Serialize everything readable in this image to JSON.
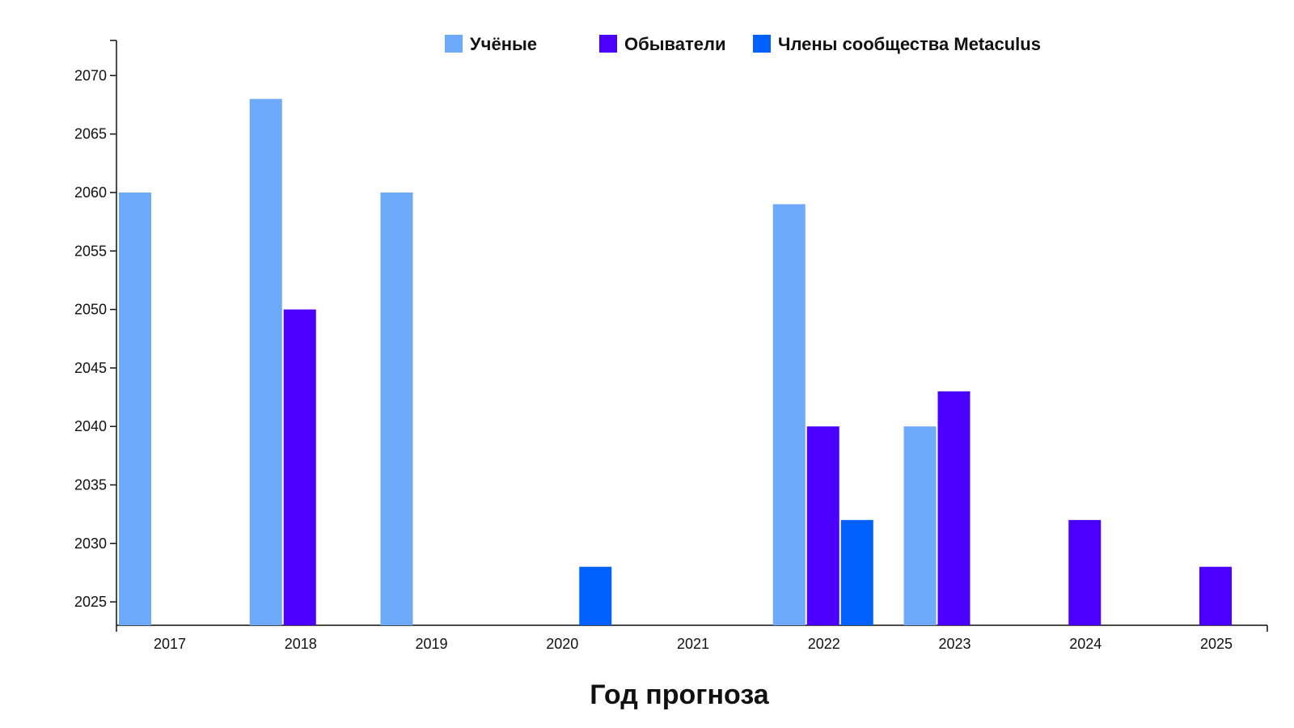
{
  "chart_data": {
    "type": "bar",
    "xlabel": "Год прогноза",
    "ylabel": "",
    "title": "",
    "ylim": [
      2023,
      2073
    ],
    "yticks": [
      2025,
      2030,
      2035,
      2040,
      2045,
      2050,
      2055,
      2060,
      2065,
      2070
    ],
    "categories": [
      "2017",
      "2018",
      "2019",
      "2020",
      "2021",
      "2022",
      "2023",
      "2024",
      "2025"
    ],
    "legend_position": "top",
    "grid": false,
    "series": [
      {
        "name": "Учёные",
        "color": "#6eaafc",
        "values": [
          2060,
          2068,
          2060,
          null,
          null,
          2059,
          2040,
          null,
          null
        ]
      },
      {
        "name": "Обыватели",
        "color": "#4b00ff",
        "values": [
          null,
          2050,
          null,
          null,
          null,
          2040,
          2043,
          2032,
          2028
        ]
      },
      {
        "name": "Члены сообщества Metaculus",
        "color": "#0061fe",
        "values": [
          null,
          null,
          null,
          2028,
          null,
          2032,
          null,
          null,
          null
        ]
      }
    ]
  }
}
